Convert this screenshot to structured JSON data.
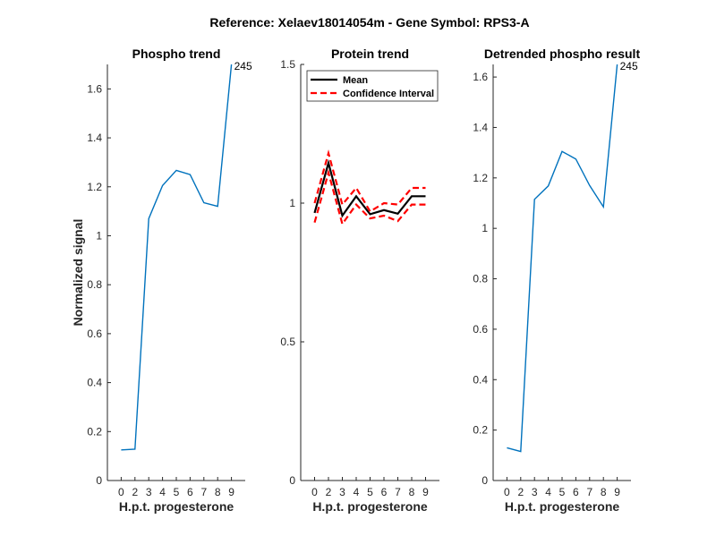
{
  "figure_title": "Reference:  Xelaev18014054m - Gene Symbol:  RPS3-A",
  "chart_data": [
    {
      "type": "line",
      "title": "Phospho trend",
      "xlabel": "H.p.t. progesterone",
      "ylabel": "Normalized signal",
      "x": [
        0,
        2,
        3,
        4,
        5,
        6,
        7,
        8,
        9
      ],
      "x_tick_labels": [
        "0",
        "2",
        "3",
        "4",
        "5",
        "6",
        "7",
        "8",
        "9"
      ],
      "ylim": [
        0,
        1.7
      ],
      "yticks": [
        0,
        0.2,
        0.4,
        0.6,
        0.8,
        1,
        1.2,
        1.4,
        1.6
      ],
      "ytick_labels": [
        "0",
        "0.2",
        "0.4",
        "0.6",
        "0.8",
        "1",
        "1.2",
        "1.4",
        "1.6"
      ],
      "series": [
        {
          "color": "#0072BD",
          "values": [
            0.125,
            0.128,
            1.07,
            1.205,
            1.267,
            1.25,
            1.135,
            1.12,
            1.7
          ]
        }
      ],
      "annotation": {
        "text": "245",
        "x_index": 8
      },
      "grid": false
    },
    {
      "type": "line",
      "title": "Protein trend",
      "xlabel": "H.p.t. progesterone",
      "ylabel": "",
      "x": [
        0,
        2,
        3,
        4,
        5,
        6,
        7,
        8,
        9
      ],
      "x_tick_labels": [
        "0",
        "2",
        "3",
        "4",
        "5",
        "6",
        "7",
        "8",
        "9"
      ],
      "ylim": [
        0,
        1.5
      ],
      "yticks": [
        0,
        0.5,
        1,
        1.5
      ],
      "ytick_labels": [
        "0",
        "0.5",
        "1",
        "1.5"
      ],
      "series": [
        {
          "name": "Mean",
          "color": "#000000",
          "style": "solid",
          "values": [
            0.965,
            1.145,
            0.955,
            1.025,
            0.96,
            0.975,
            0.962,
            1.025,
            1.025
          ]
        },
        {
          "name": "Confidence Interval",
          "color": "#ff0000",
          "style": "dashed",
          "values": [
            1.0,
            1.18,
            0.995,
            1.055,
            0.97,
            1.0,
            0.995,
            1.055,
            1.055
          ]
        },
        {
          "color": "#ff0000",
          "style": "dashed",
          "values": [
            0.93,
            1.11,
            0.925,
            0.995,
            0.945,
            0.955,
            0.935,
            0.995,
            0.995
          ]
        }
      ],
      "legend": {
        "placement": "top",
        "entries": [
          "Mean",
          "Confidence Interval"
        ]
      },
      "grid": false
    },
    {
      "type": "line",
      "title": "Detrended phospho result",
      "xlabel": "H.p.t. progesterone",
      "ylabel": "",
      "x": [
        0,
        2,
        3,
        4,
        5,
        6,
        7,
        8,
        9
      ],
      "x_tick_labels": [
        "0",
        "2",
        "3",
        "4",
        "5",
        "6",
        "7",
        "8",
        "9"
      ],
      "ylim": [
        0,
        1.65
      ],
      "yticks": [
        0,
        0.2,
        0.4,
        0.6,
        0.8,
        1,
        1.2,
        1.4,
        1.6
      ],
      "ytick_labels": [
        "0",
        "0.2",
        "0.4",
        "0.6",
        "0.8",
        "1",
        "1.2",
        "1.4",
        "1.6"
      ],
      "series": [
        {
          "color": "#0072BD",
          "values": [
            0.13,
            0.115,
            1.115,
            1.168,
            1.305,
            1.275,
            1.17,
            1.085,
            1.65
          ]
        }
      ],
      "annotation": {
        "text": "245",
        "x_index": 8
      },
      "grid": false
    }
  ]
}
